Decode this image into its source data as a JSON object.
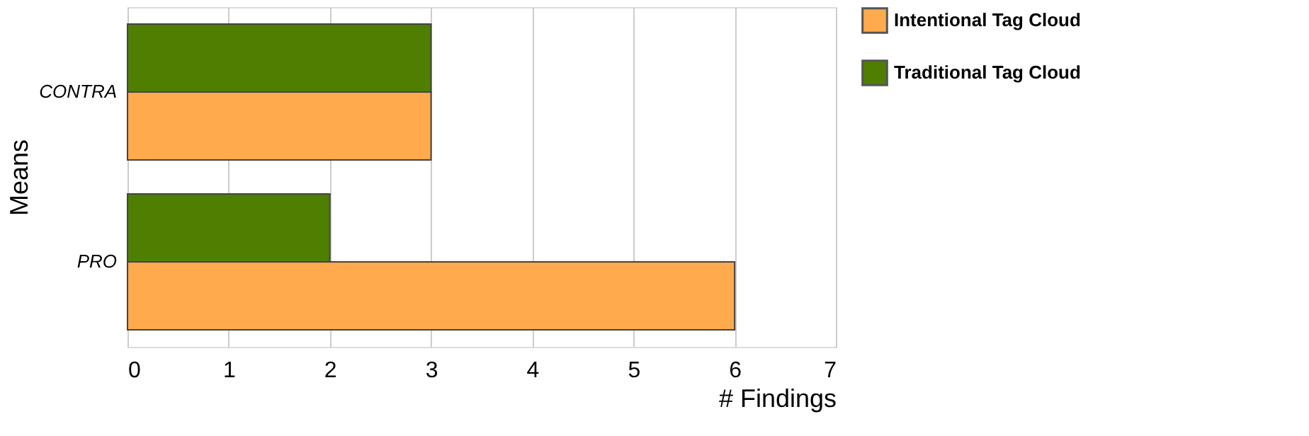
{
  "chart_data": {
    "type": "bar",
    "orientation": "horizontal",
    "xlabel": "# Findings",
    "ylabel": "Means",
    "categories": [
      "CONTRA",
      "PRO"
    ],
    "series": [
      {
        "name": "Intentional Tag Cloud",
        "color": "#ffaa4c",
        "values": [
          3,
          6
        ]
      },
      {
        "name": "Traditional Tag Cloud",
        "color": "#4f7f00",
        "values": [
          3,
          2
        ]
      }
    ],
    "xlim": [
      0,
      7
    ],
    "xticks": [
      0,
      1,
      2,
      3,
      4,
      5,
      6,
      7
    ],
    "grid": "x",
    "legend": "right"
  }
}
